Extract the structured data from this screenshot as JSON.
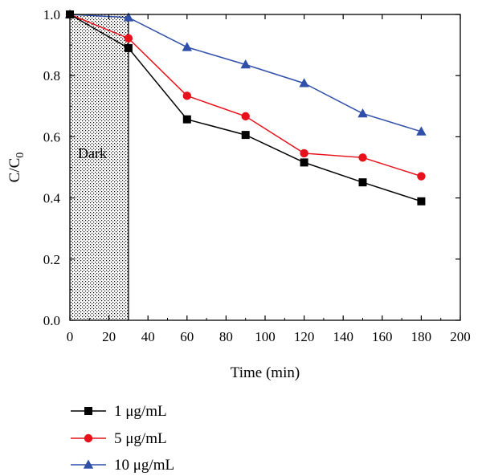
{
  "chart_data": {
    "type": "line",
    "title": "",
    "xlabel": "Time (min)",
    "ylabel_main": "C/C",
    "ylabel_sub": "0",
    "xlim": [
      0,
      200
    ],
    "ylim": [
      0,
      1.0
    ],
    "xticks": [
      0,
      20,
      40,
      60,
      80,
      100,
      120,
      140,
      160,
      180,
      200
    ],
    "yticks": [
      0.0,
      0.2,
      0.4,
      0.6,
      0.8,
      1.0
    ],
    "xtick_labels": [
      "0",
      "20",
      "40",
      "60",
      "80",
      "100",
      "120",
      "140",
      "160",
      "180",
      "200"
    ],
    "ytick_labels": [
      "0.0",
      "0.2",
      "0.4",
      "0.6",
      "0.8",
      "1.0"
    ],
    "grid": false,
    "legend_position": "below",
    "dark_region": {
      "label": "Dark",
      "x_start": 0,
      "x_end": 30
    },
    "x": [
      0,
      30,
      60,
      90,
      120,
      150,
      180
    ],
    "series": [
      {
        "name": "1 μg/mL",
        "color": "#000000",
        "marker": "square",
        "values": [
          1.0,
          0.89,
          0.657,
          0.606,
          0.516,
          0.451,
          0.389
        ]
      },
      {
        "name": "5 μg/mL",
        "color": "#e8101a",
        "marker": "circle",
        "values": [
          1.0,
          0.922,
          0.734,
          0.667,
          0.546,
          0.532,
          0.471
        ]
      },
      {
        "name": "10 μg/mL",
        "color": "#2f4fa8",
        "marker": "triangle",
        "values": [
          1.0,
          0.99,
          0.893,
          0.836,
          0.775,
          0.676,
          0.617
        ]
      }
    ]
  }
}
